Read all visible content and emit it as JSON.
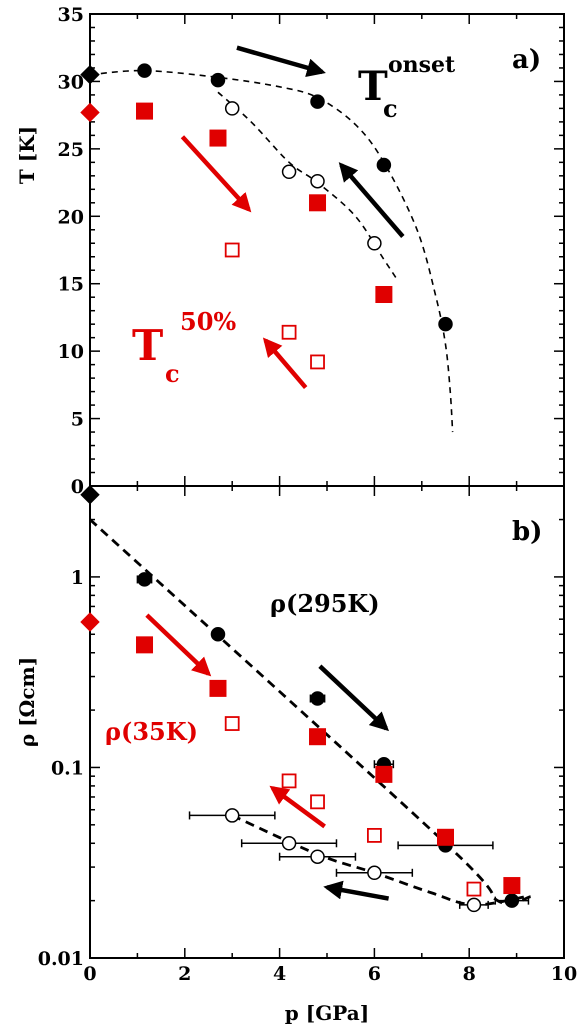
{
  "colors": {
    "black": "#000000",
    "red": "#e00000",
    "white": "#ffffff"
  },
  "chart_data": [
    {
      "panel_label": "a)",
      "type": "scatter",
      "xlim": [
        0,
        10
      ],
      "ylim": [
        0,
        35
      ],
      "ylabel": "T [K]",
      "yticks": [
        0,
        5,
        10,
        15,
        20,
        25,
        30,
        35
      ],
      "grid": false,
      "annotations": {
        "tc_onset": {
          "main": "T",
          "sub": "c",
          "sup": "onset"
        },
        "tc_50": {
          "main": "T",
          "sub": "c",
          "sup": "50%"
        }
      },
      "series": [
        {
          "marker": "diamond",
          "color": "black",
          "filled": true,
          "points": [
            [
              0,
              30.5
            ]
          ]
        },
        {
          "marker": "diamond",
          "color": "red",
          "filled": true,
          "points": [
            [
              0,
              27.7
            ]
          ]
        },
        {
          "marker": "circle",
          "color": "black",
          "filled": true,
          "points": [
            [
              1.15,
              30.8
            ],
            [
              2.7,
              30.1
            ],
            [
              4.8,
              28.5
            ],
            [
              6.2,
              23.8
            ],
            [
              7.5,
              12.0
            ]
          ]
        },
        {
          "marker": "circle",
          "color": "black",
          "filled": false,
          "points": [
            [
              3.0,
              28.0
            ],
            [
              4.2,
              23.3
            ],
            [
              4.8,
              22.6
            ],
            [
              6.0,
              18.0
            ]
          ]
        },
        {
          "marker": "square",
          "color": "red",
          "filled": true,
          "points": [
            [
              1.15,
              27.8
            ],
            [
              2.7,
              25.8
            ],
            [
              4.8,
              21.0
            ],
            [
              6.2,
              14.2
            ]
          ]
        },
        {
          "marker": "square",
          "color": "red",
          "filled": false,
          "points": [
            [
              3.0,
              17.5
            ],
            [
              4.2,
              11.4
            ],
            [
              4.8,
              9.2
            ]
          ]
        }
      ],
      "guide_curves": [
        {
          "color": "black",
          "points": [
            [
              0,
              30.5
            ],
            [
              1.15,
              30.8
            ],
            [
              2.7,
              30.3
            ],
            [
              4.0,
              29.6
            ],
            [
              4.8,
              28.8
            ],
            [
              5.6,
              26.8
            ],
            [
              6.2,
              24.0
            ],
            [
              6.9,
              19.0
            ],
            [
              7.3,
              14.0
            ],
            [
              7.5,
              10.5
            ],
            [
              7.6,
              7.0
            ],
            [
              7.65,
              4.0
            ]
          ]
        },
        {
          "color": "black",
          "points": [
            [
              2.7,
              29.2
            ],
            [
              3.4,
              27.0
            ],
            [
              4.2,
              24.0
            ],
            [
              4.8,
              22.5
            ],
            [
              5.6,
              20.0
            ],
            [
              6.2,
              16.8
            ],
            [
              6.5,
              15.2
            ]
          ]
        }
      ],
      "arrows": [
        {
          "color": "black",
          "from": [
            3.1,
            32.5
          ],
          "to": [
            4.9,
            30.7
          ]
        },
        {
          "color": "black",
          "from": [
            6.6,
            18.5
          ],
          "to": [
            5.3,
            23.8
          ]
        },
        {
          "color": "red",
          "from": [
            1.95,
            25.9
          ],
          "to": [
            3.35,
            20.5
          ]
        },
        {
          "color": "red",
          "from": [
            4.55,
            7.3
          ],
          "to": [
            3.7,
            10.8
          ]
        }
      ]
    },
    {
      "panel_label": "b)",
      "type": "scatter",
      "xlim": [
        0,
        10
      ],
      "ylim": [
        0.01,
        3
      ],
      "yscale": "log",
      "xlabel": "p [GPa]",
      "ylabel": "ρ [Ωcm]",
      "xticks": [
        0,
        2,
        4,
        6,
        8,
        10
      ],
      "ytick_labels": [
        {
          "v": 0.01,
          "label": "0.01"
        },
        {
          "v": 0.1,
          "label": "0.1"
        },
        {
          "v": 1,
          "label": "1"
        }
      ],
      "grid": false,
      "annotations": {
        "rho_295": "ρ(295K)",
        "rho_35": "ρ(35K)"
      },
      "series": [
        {
          "marker": "diamond",
          "color": "black",
          "filled": true,
          "points": [
            [
              0,
              2.7
            ]
          ]
        },
        {
          "marker": "diamond",
          "color": "red",
          "filled": true,
          "points": [
            [
              0,
              0.58
            ]
          ]
        },
        {
          "marker": "circle",
          "color": "black",
          "filled": true,
          "points": [
            [
              1.15,
              0.97
            ],
            [
              2.7,
              0.5
            ],
            [
              4.8,
              0.23
            ],
            [
              6.2,
              0.104
            ],
            [
              7.5,
              0.039
            ],
            [
              8.9,
              0.02
            ]
          ],
          "xerr": [
            0.15,
            0,
            0.15,
            0.2,
            1.0,
            0.35
          ]
        },
        {
          "marker": "circle",
          "color": "black",
          "filled": false,
          "points": [
            [
              3.0,
              0.056
            ],
            [
              4.2,
              0.04
            ],
            [
              4.8,
              0.034
            ],
            [
              6.0,
              0.028
            ],
            [
              8.1,
              0.019
            ]
          ],
          "xerr": [
            0.9,
            1.0,
            0.8,
            0.8,
            0.3
          ]
        },
        {
          "marker": "square",
          "color": "red",
          "filled": true,
          "points": [
            [
              1.15,
              0.44
            ],
            [
              2.7,
              0.26
            ],
            [
              4.8,
              0.145
            ],
            [
              6.2,
              0.092
            ],
            [
              7.5,
              0.043
            ],
            [
              8.9,
              0.024
            ]
          ]
        },
        {
          "marker": "square",
          "color": "red",
          "filled": false,
          "points": [
            [
              3.0,
              0.17
            ],
            [
              4.2,
              0.085
            ],
            [
              4.8,
              0.066
            ],
            [
              6.0,
              0.044
            ],
            [
              8.1,
              0.023
            ]
          ]
        }
      ],
      "guide_curves": [
        {
          "color": "black",
          "points": [
            [
              0,
              2.0
            ],
            [
              7.5,
              0.04
            ],
            [
              8.6,
              0.02
            ],
            [
              9.3,
              0.021
            ]
          ]
        },
        {
          "color": "black",
          "points": [
            [
              3.0,
              0.056
            ],
            [
              4.8,
              0.035
            ],
            [
              6.0,
              0.028
            ],
            [
              7.2,
              0.022
            ],
            [
              8.1,
              0.019
            ],
            [
              9.2,
              0.021
            ]
          ]
        }
      ],
      "arrows": [
        {
          "color": "black",
          "from": [
            4.85,
            0.34
          ],
          "to": [
            6.25,
            0.16
          ]
        },
        {
          "color": "black",
          "from": [
            6.3,
            0.0205
          ],
          "to": [
            5.0,
            0.0235
          ]
        },
        {
          "color": "red",
          "from": [
            1.2,
            0.63
          ],
          "to": [
            2.5,
            0.31
          ]
        },
        {
          "color": "red",
          "from": [
            4.95,
            0.049
          ],
          "to": [
            3.85,
            0.078
          ]
        }
      ]
    }
  ]
}
